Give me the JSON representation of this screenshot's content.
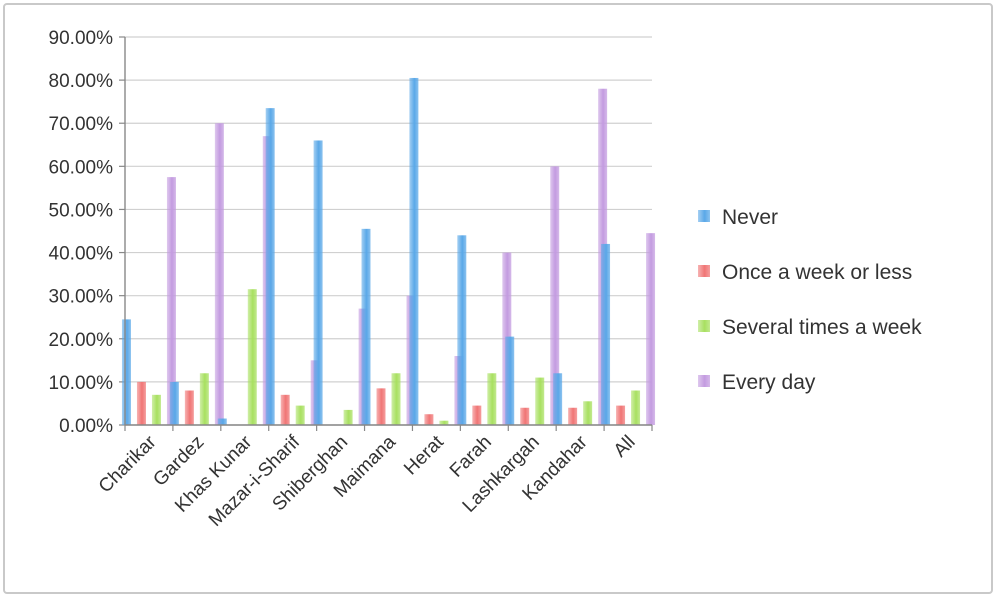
{
  "chart_data": {
    "type": "bar",
    "title": "",
    "xlabel": "",
    "ylabel": "",
    "ylim": [
      0,
      90
    ],
    "yticks": [
      "0.00%",
      "10.00%",
      "20.00%",
      "30.00%",
      "40.00%",
      "50.00%",
      "60.00%",
      "70.00%",
      "80.00%",
      "90.00%"
    ],
    "grid": true,
    "legend": "right",
    "categories": [
      "Charikar",
      "Gardez",
      "Khas Kunar",
      "Mazar-i-Sharif",
      "Shiberghan",
      "Maimana",
      "Herat",
      "Farah",
      "Lashkargah",
      "Kandahar",
      "All"
    ],
    "series": [
      {
        "name": "Never",
        "color": "#5aa8e8",
        "values": [
          24.5,
          10,
          1.5,
          73.5,
          66,
          45.5,
          80.5,
          44,
          20.5,
          12,
          42
        ]
      },
      {
        "name": "Once a week or less",
        "color": "#f07575",
        "values": [
          10,
          8,
          0,
          7,
          0,
          8.5,
          2.5,
          4.5,
          4,
          4,
          4.5
        ]
      },
      {
        "name": "Several times a week",
        "color": "#a8e060",
        "values": [
          7,
          12,
          31.5,
          4.5,
          3.5,
          12,
          1,
          12,
          11,
          5.5,
          8
        ]
      },
      {
        "name": "Every day",
        "color": "#c39be0",
        "values": [
          57.5,
          70,
          67,
          15,
          27,
          30,
          16,
          40,
          60,
          78,
          44.5
        ]
      }
    ]
  }
}
